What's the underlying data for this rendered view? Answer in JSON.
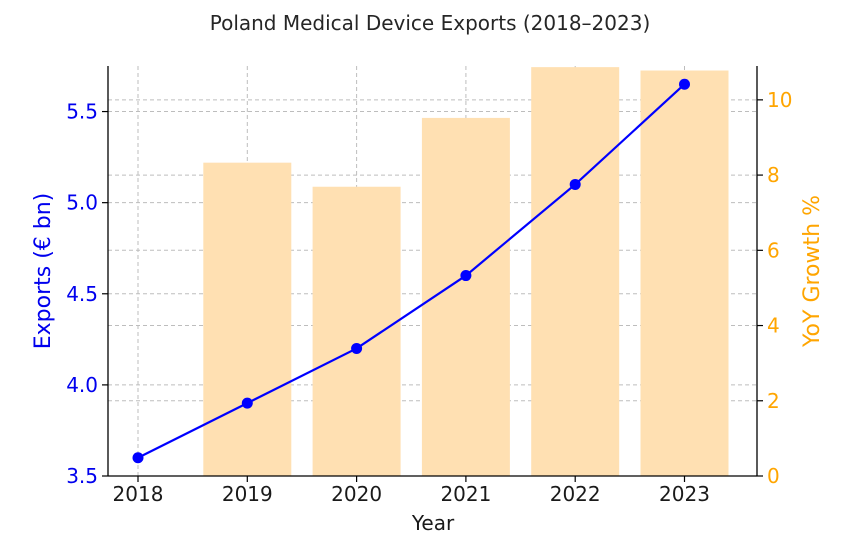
{
  "chart_data": {
    "type": "bar+line",
    "title": "Poland Medical Device Exports (2018–2023)",
    "xlabel": "Year",
    "categories": [
      "2018",
      "2019",
      "2020",
      "2021",
      "2022",
      "2023"
    ],
    "line_series": {
      "axis": "left",
      "values": [
        3.6,
        3.9,
        4.2,
        4.6,
        5.1,
        5.65
      ],
      "color": "#0000ff",
      "marker": "circle"
    },
    "bar_series": {
      "axis": "right",
      "values": [
        null,
        8.33,
        7.69,
        9.52,
        10.87,
        10.78
      ],
      "color": "#ffe0b2"
    },
    "y_left": {
      "label": "Exports (€ bn)",
      "ylim": [
        3.5,
        5.75
      ],
      "ticks": [
        "3.5",
        "4.0",
        "4.5",
        "5.0",
        "5.5"
      ],
      "tick_values": [
        3.5,
        4.0,
        4.5,
        5.0,
        5.5
      ],
      "color": "#0000ee"
    },
    "y_right": {
      "label": "YoY Growth %",
      "ylim": [
        0,
        10.9
      ],
      "ticks": [
        "0",
        "2",
        "4",
        "6",
        "8",
        "10"
      ],
      "tick_values": [
        0,
        2,
        4,
        6,
        8,
        10
      ],
      "color": "#ffa500"
    },
    "grid": true,
    "legend": "none"
  }
}
